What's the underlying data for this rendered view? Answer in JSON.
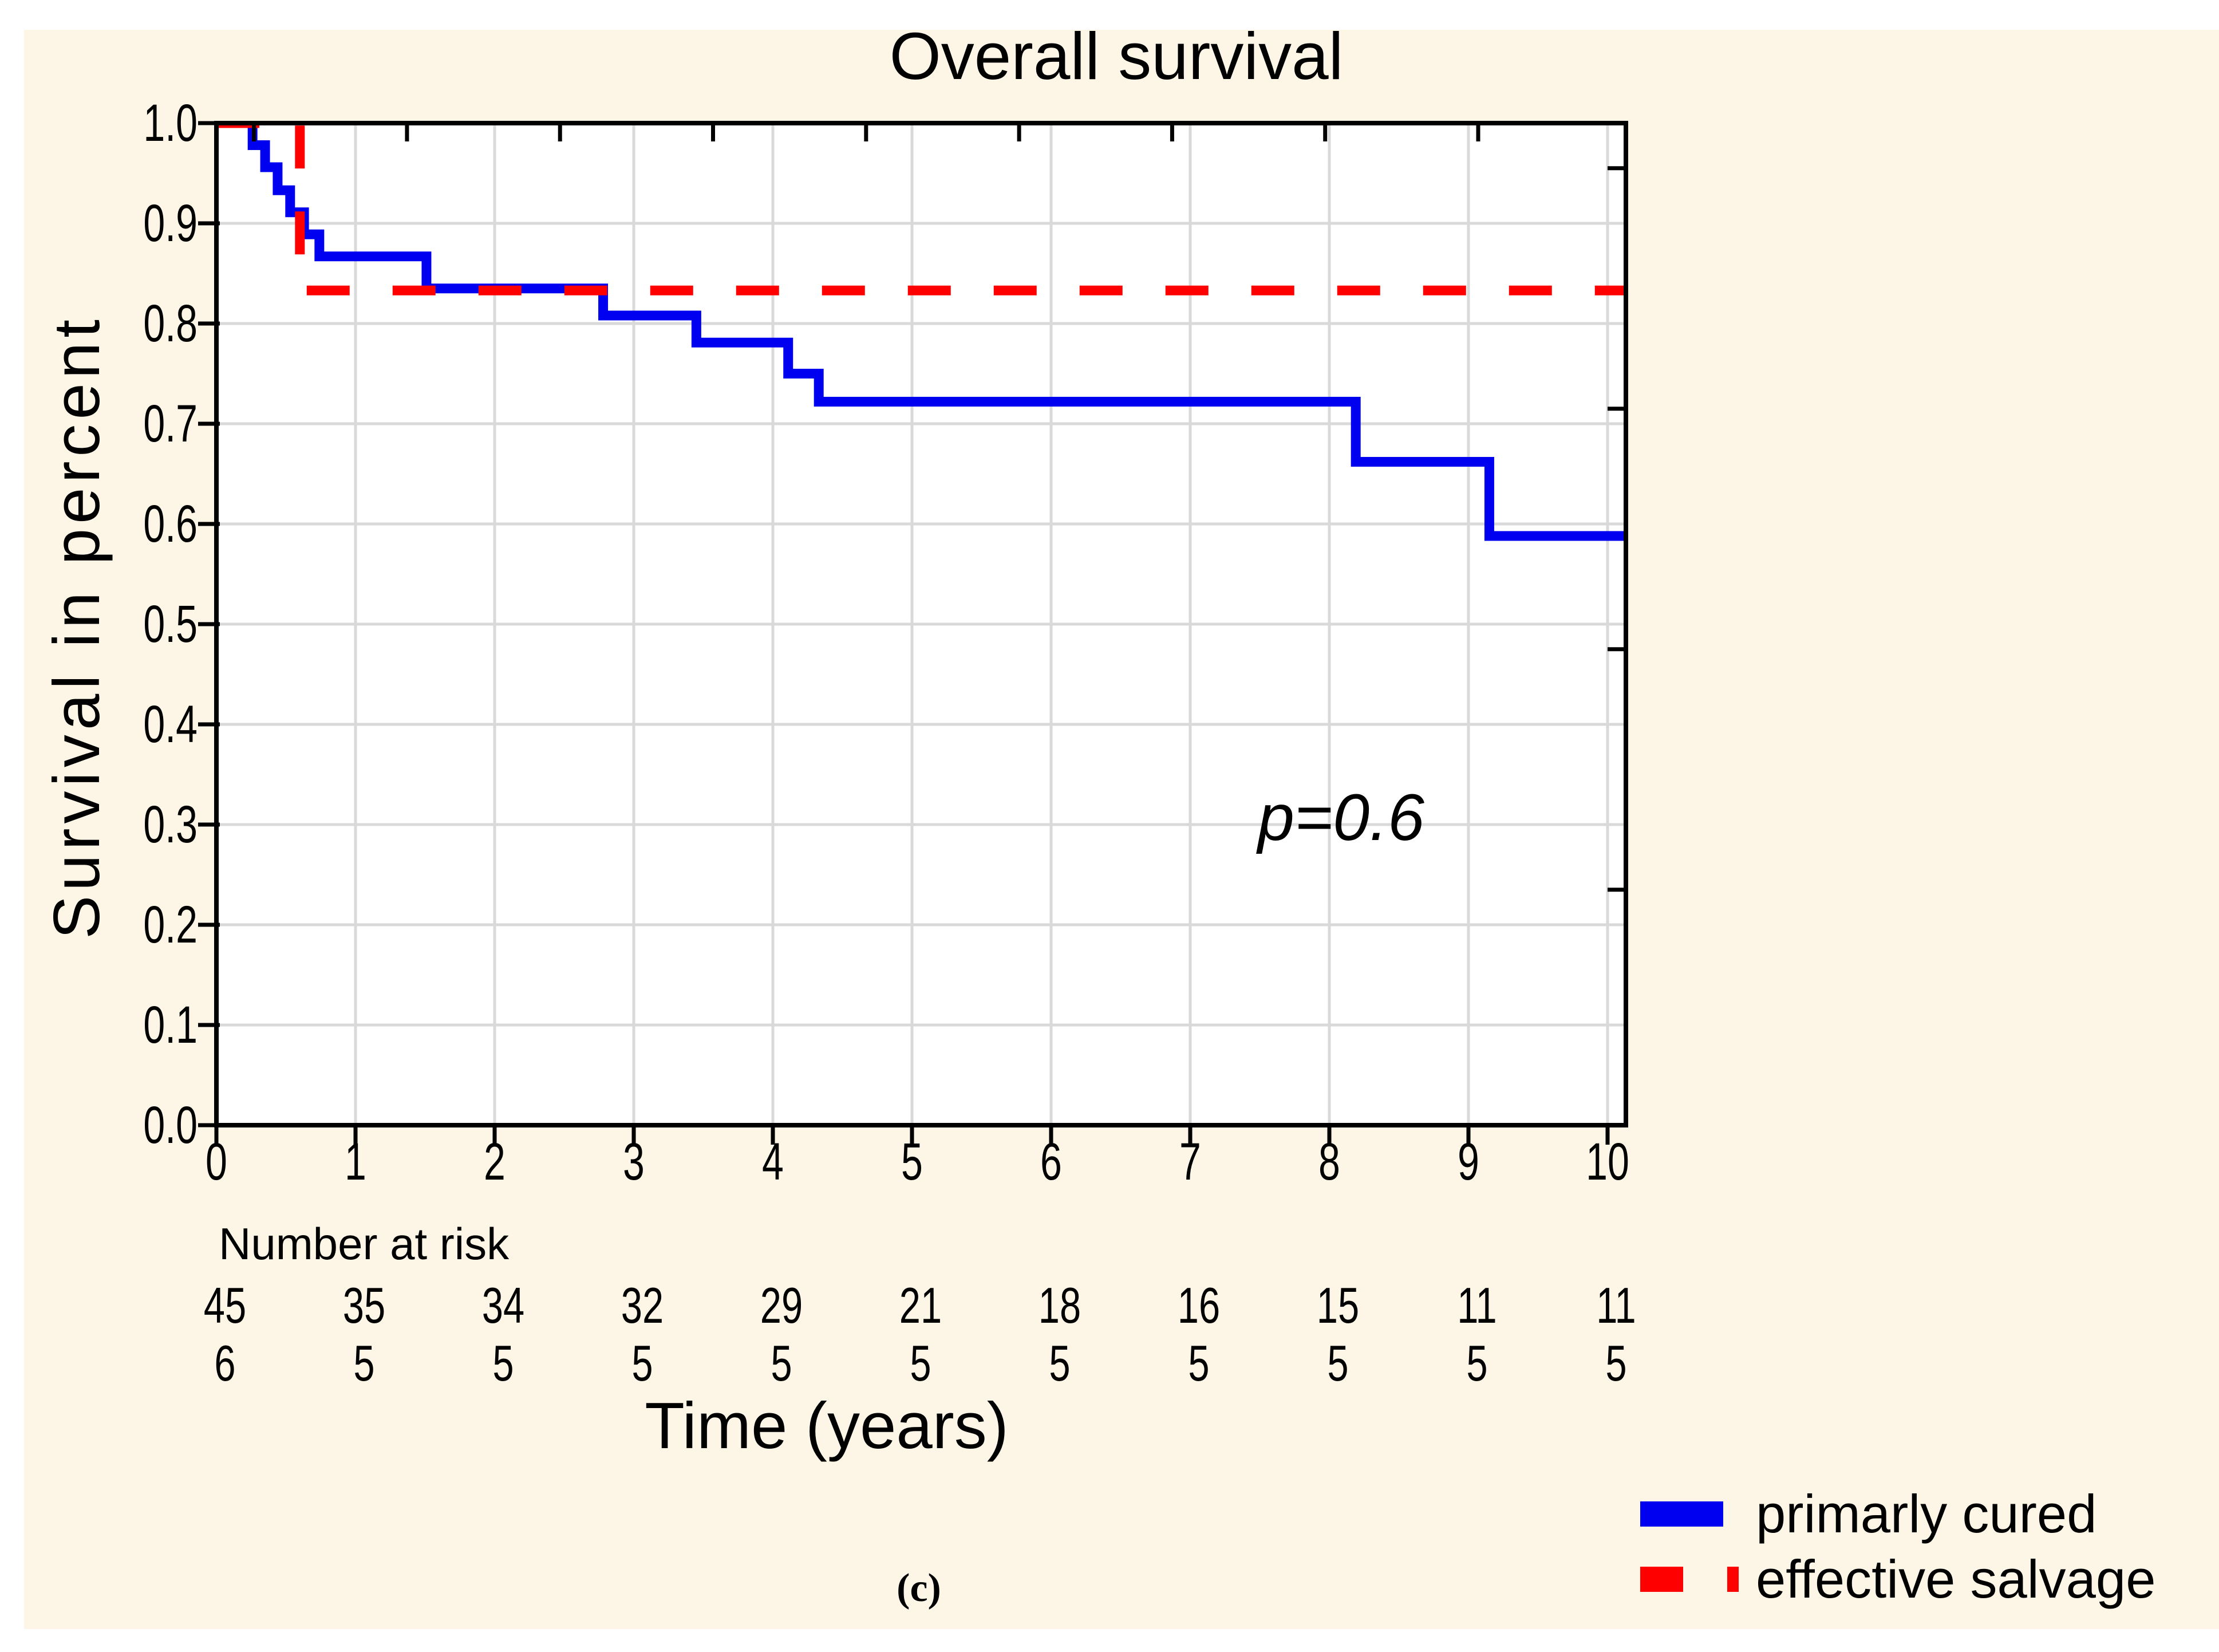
{
  "figure": {
    "page_background": "#FFFFFF",
    "panel_background": "#FDF5E6",
    "caption": "(c)"
  },
  "chart_data": {
    "type": "line",
    "subtype": "kaplan_meier_step",
    "title": "Overall survival",
    "xlabel": "Time (years)",
    "ylabel": "Survival in percent",
    "xlim": [
      0,
      10.13
    ],
    "ylim": [
      0.0,
      1.0
    ],
    "grid": true,
    "gridline_color": "#D9D9D9",
    "x_ticks": [
      0,
      1,
      2,
      3,
      4,
      5,
      6,
      7,
      8,
      9,
      10
    ],
    "x_tick_labels": [
      "0",
      "1",
      "2",
      "3",
      "4",
      "5",
      "6",
      "7",
      "8",
      "9",
      "10"
    ],
    "y_ticks": [
      1.0,
      0.9,
      0.8,
      0.7,
      0.6,
      0.5,
      0.4,
      0.3,
      0.2,
      0.1,
      0.0
    ],
    "y_tick_labels": [
      "1.0",
      "0.9",
      "0.8",
      "0.7",
      "0.6",
      "0.5",
      "0.4",
      "0.3",
      "0.2",
      "0.1",
      "0.0"
    ],
    "annotation": {
      "text": "p=0.6"
    },
    "series": [
      {
        "name": "primarly cured",
        "color": "#0000F0",
        "line_style": "solid",
        "start_value": 1.0,
        "steps": [
          [
            0.26,
            0.978
          ],
          [
            0.35,
            0.956
          ],
          [
            0.44,
            0.933
          ],
          [
            0.53,
            0.911
          ],
          [
            0.63,
            0.889
          ],
          [
            0.74,
            0.867
          ],
          [
            1.51,
            0.835
          ],
          [
            2.78,
            0.808
          ],
          [
            3.45,
            0.781
          ],
          [
            4.11,
            0.75
          ],
          [
            4.33,
            0.722
          ],
          [
            8.19,
            0.662
          ],
          [
            9.15,
            0.588
          ]
        ],
        "end_x": 10.13
      },
      {
        "name": "effective salvage",
        "color": "#FF0000",
        "line_style": "dashed",
        "start_value": 1.0,
        "steps": [
          [
            0.6,
            0.833
          ]
        ],
        "end_x": 10.13
      }
    ],
    "number_at_risk": {
      "label": "Number at risk",
      "times": [
        0,
        1,
        2,
        3,
        4,
        5,
        6,
        7,
        8,
        9,
        10
      ],
      "rows": [
        {
          "series": "primarly cured",
          "counts": [
            45,
            35,
            34,
            32,
            29,
            21,
            18,
            16,
            15,
            11,
            11
          ]
        },
        {
          "series": "effective salvage",
          "counts": [
            6,
            5,
            5,
            5,
            5,
            5,
            5,
            5,
            5,
            5,
            5
          ]
        }
      ]
    },
    "legend": [
      {
        "label": "primarly cured",
        "color": "#0000F0",
        "style": "solid"
      },
      {
        "label": "effective salvage",
        "color": "#FF0000",
        "style": "dashed"
      }
    ],
    "legend_position": "bottom-right"
  }
}
